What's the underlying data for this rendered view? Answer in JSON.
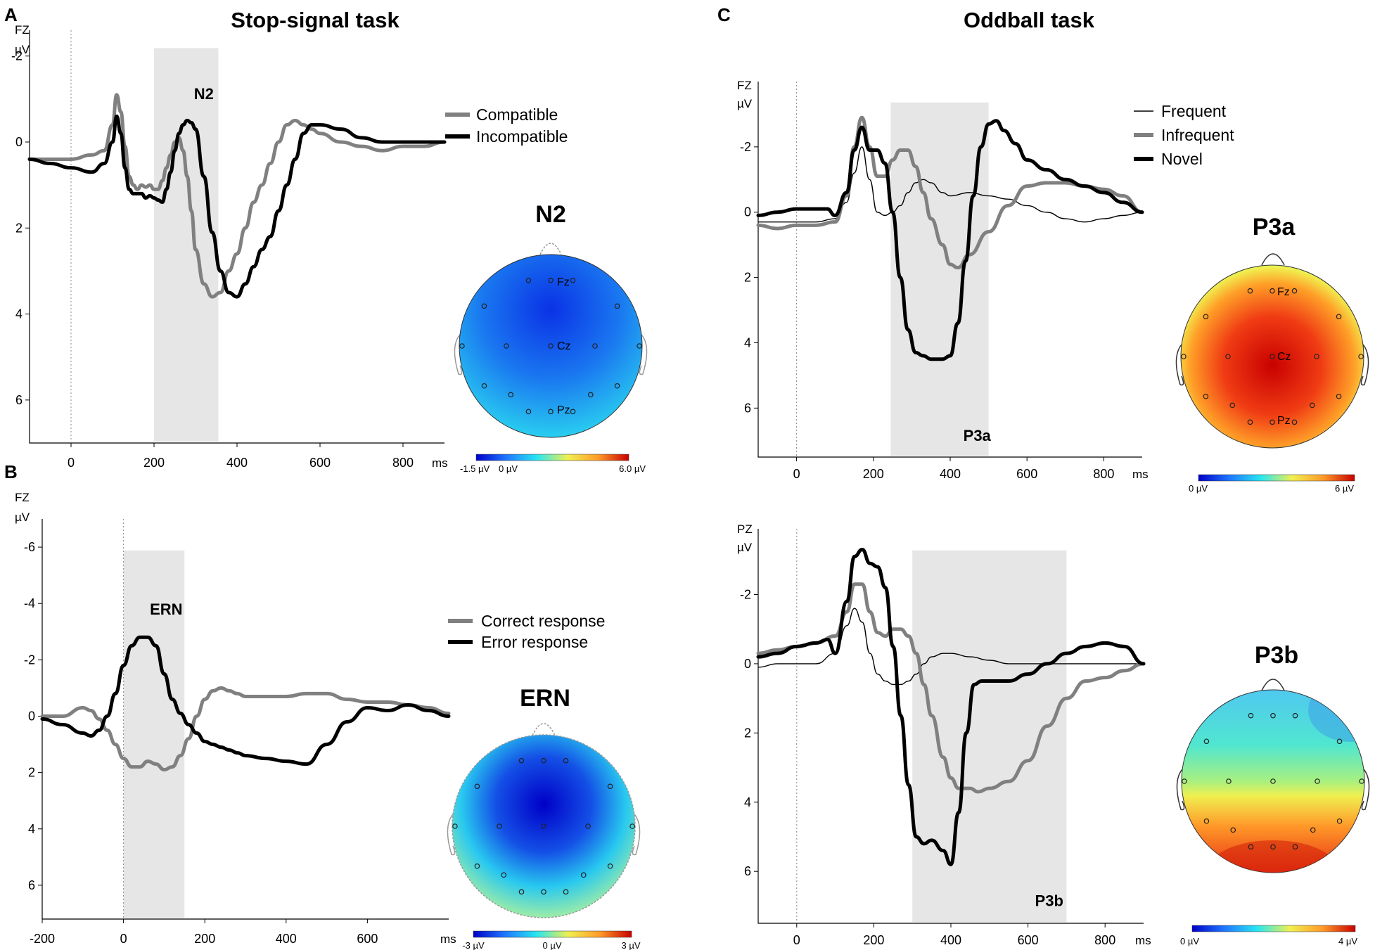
{
  "figure": {
    "panel_A": "A",
    "panel_B": "B",
    "panel_C": "C",
    "stop_title": "Stop-signal task",
    "oddball_title": "Oddball task"
  },
  "colors": {
    "grey_line": "#808080",
    "black_line": "#000000",
    "shade": "#e6e6e6"
  },
  "chart_data": [
    {
      "id": "A",
      "type": "line",
      "channel": "FZ",
      "unit": "µV",
      "xunit": "ms",
      "xlim": [
        -100,
        900
      ],
      "ylim": [
        7,
        -2.6
      ],
      "inverted_y": true,
      "xticks": [
        0,
        200,
        400,
        600,
        800
      ],
      "yticks": [
        -2,
        0,
        2,
        4,
        6
      ],
      "shade": [
        200,
        355
      ],
      "component_label": "N2",
      "component_pos": [
        320,
        -1.0
      ],
      "legend": [
        "Compatible",
        "Incompatible"
      ],
      "series": [
        {
          "name": "Compatible",
          "style": "grey",
          "x": [
            -100,
            -50,
            0,
            50,
            80,
            100,
            110,
            120,
            130,
            140,
            150,
            160,
            170,
            180,
            190,
            200,
            210,
            220,
            230,
            240,
            250,
            260,
            270,
            280,
            290,
            300,
            320,
            340,
            360,
            380,
            400,
            420,
            440,
            460,
            480,
            500,
            520,
            540,
            560,
            580,
            600,
            650,
            700,
            750,
            800,
            850,
            900
          ],
          "y": [
            0.4,
            0.4,
            0.4,
            0.3,
            0.2,
            -0.4,
            -1.1,
            -0.7,
            0.1,
            0.8,
            1.0,
            1.1,
            1.0,
            1.05,
            1.0,
            1.1,
            1.1,
            0.9,
            0.6,
            0.3,
            0.0,
            -0.1,
            0.2,
            0.8,
            1.6,
            2.5,
            3.3,
            3.6,
            3.5,
            3.0,
            2.6,
            2.0,
            1.4,
            1.0,
            0.5,
            0.0,
            -0.4,
            -0.5,
            -0.4,
            -0.3,
            -0.2,
            0.0,
            0.1,
            0.2,
            0.1,
            0.1,
            0.0
          ]
        },
        {
          "name": "Incompatible",
          "style": "black",
          "x": [
            -100,
            -50,
            0,
            50,
            80,
            100,
            110,
            120,
            130,
            140,
            150,
            160,
            170,
            180,
            190,
            200,
            210,
            220,
            230,
            240,
            250,
            260,
            270,
            280,
            290,
            300,
            320,
            340,
            360,
            380,
            400,
            420,
            440,
            460,
            480,
            500,
            520,
            540,
            560,
            580,
            600,
            650,
            700,
            750,
            800,
            850,
            900
          ],
          "y": [
            0.4,
            0.5,
            0.6,
            0.7,
            0.5,
            0.0,
            -0.6,
            -0.2,
            0.6,
            1.1,
            1.2,
            1.2,
            1.2,
            1.3,
            1.25,
            1.3,
            1.35,
            1.4,
            1.1,
            0.7,
            0.2,
            -0.2,
            -0.4,
            -0.5,
            -0.45,
            -0.3,
            0.8,
            2.1,
            3.0,
            3.5,
            3.6,
            3.3,
            2.9,
            2.5,
            2.2,
            1.6,
            1.0,
            0.4,
            -0.2,
            -0.4,
            -0.4,
            -0.3,
            -0.1,
            0.0,
            0.0,
            0.0,
            0.0
          ]
        }
      ]
    },
    {
      "id": "B",
      "type": "line",
      "channel": "FZ",
      "unit": "µV",
      "xunit": "ms",
      "xlim": [
        -200,
        800
      ],
      "ylim": [
        7.2,
        -7
      ],
      "inverted_y": true,
      "xticks": [
        -200,
        0,
        200,
        400,
        600
      ],
      "yticks": [
        -6,
        -4,
        -2,
        0,
        2,
        4,
        6
      ],
      "shade": [
        0,
        150
      ],
      "component_label": "ERN",
      "component_pos": [
        105,
        -3.6
      ],
      "legend": [
        "Correct response",
        "Error response"
      ],
      "series": [
        {
          "name": "Correct response",
          "style": "grey",
          "x": [
            -200,
            -150,
            -100,
            -80,
            -60,
            -40,
            -20,
            0,
            20,
            40,
            60,
            80,
            100,
            120,
            140,
            160,
            180,
            200,
            220,
            240,
            260,
            280,
            300,
            350,
            400,
            450,
            500,
            550,
            600,
            650,
            700,
            750,
            800
          ],
          "y": [
            0.0,
            0.0,
            -0.3,
            -0.2,
            0.1,
            0.5,
            1.0,
            1.5,
            1.8,
            1.8,
            1.6,
            1.7,
            1.9,
            1.8,
            1.4,
            0.8,
            0.0,
            -0.6,
            -0.9,
            -1.0,
            -0.9,
            -0.8,
            -0.7,
            -0.7,
            -0.7,
            -0.8,
            -0.8,
            -0.6,
            -0.5,
            -0.5,
            -0.4,
            -0.3,
            -0.1
          ]
        },
        {
          "name": "Error response",
          "style": "black",
          "x": [
            -200,
            -150,
            -100,
            -80,
            -60,
            -40,
            -20,
            0,
            20,
            40,
            60,
            80,
            100,
            120,
            140,
            160,
            180,
            200,
            220,
            240,
            260,
            280,
            300,
            350,
            400,
            450,
            500,
            550,
            600,
            650,
            700,
            750,
            800
          ],
          "y": [
            0.1,
            0.3,
            0.6,
            0.7,
            0.5,
            0.0,
            -0.8,
            -1.8,
            -2.5,
            -2.8,
            -2.8,
            -2.5,
            -1.5,
            -0.6,
            -0.1,
            0.3,
            0.6,
            0.9,
            1.0,
            1.1,
            1.2,
            1.3,
            1.4,
            1.5,
            1.6,
            1.7,
            1.0,
            0.2,
            -0.3,
            -0.2,
            -0.4,
            -0.2,
            0.0
          ]
        }
      ]
    },
    {
      "id": "C1",
      "type": "line",
      "channel": "FZ",
      "unit": "µV",
      "xunit": "ms",
      "xlim": [
        -100,
        900
      ],
      "ylim": [
        7.5,
        -4
      ],
      "inverted_y": true,
      "xticks": [
        0,
        200,
        400,
        600,
        800
      ],
      "yticks": [
        -2,
        0,
        2,
        4,
        6
      ],
      "shade": [
        245,
        500
      ],
      "component_label": "P3a",
      "component_pos": [
        470,
        7.0
      ],
      "legend": [
        "Frequent",
        "Infrequent",
        "Novel"
      ],
      "series": [
        {
          "name": "Frequent",
          "style": "thin",
          "x": [
            -100,
            -50,
            0,
            50,
            100,
            130,
            150,
            170,
            190,
            210,
            230,
            250,
            270,
            290,
            310,
            330,
            350,
            380,
            400,
            450,
            500,
            550,
            600,
            650,
            700,
            750,
            800,
            850,
            900
          ],
          "y": [
            0.3,
            0.3,
            0.3,
            0.3,
            0.2,
            -0.3,
            -1.2,
            -2.0,
            -1.0,
            0.0,
            0.1,
            0.0,
            -0.2,
            -0.6,
            -0.9,
            -1.0,
            -0.9,
            -0.6,
            -0.5,
            -0.6,
            -0.5,
            -0.4,
            -0.2,
            0.0,
            0.2,
            0.3,
            0.2,
            0.1,
            0.0
          ]
        },
        {
          "name": "Infrequent",
          "style": "grey",
          "x": [
            -100,
            -50,
            0,
            50,
            100,
            130,
            150,
            170,
            190,
            210,
            230,
            250,
            270,
            290,
            310,
            330,
            350,
            380,
            400,
            420,
            450,
            500,
            550,
            600,
            650,
            700,
            750,
            800,
            850,
            900
          ],
          "y": [
            0.4,
            0.5,
            0.4,
            0.4,
            0.3,
            -0.5,
            -2.0,
            -2.9,
            -2.0,
            -1.1,
            -1.1,
            -1.6,
            -1.9,
            -1.9,
            -1.4,
            -0.6,
            0.2,
            1.0,
            1.6,
            1.7,
            1.3,
            0.6,
            -0.2,
            -0.8,
            -0.9,
            -0.9,
            -0.8,
            -0.7,
            -0.5,
            0.0
          ]
        },
        {
          "name": "Novel",
          "style": "black",
          "x": [
            -100,
            -50,
            0,
            50,
            80,
            100,
            130,
            150,
            170,
            190,
            210,
            230,
            250,
            270,
            290,
            310,
            330,
            350,
            380,
            400,
            420,
            440,
            460,
            480,
            500,
            520,
            540,
            570,
            600,
            650,
            700,
            750,
            800,
            850,
            900
          ],
          "y": [
            0.1,
            0.0,
            -0.1,
            -0.1,
            -0.1,
            0.1,
            -0.6,
            -1.9,
            -2.6,
            -1.9,
            -1.9,
            -1.5,
            0.0,
            2.0,
            3.6,
            4.3,
            4.4,
            4.5,
            4.5,
            4.4,
            3.4,
            1.5,
            -0.5,
            -2.0,
            -2.7,
            -2.8,
            -2.5,
            -2.1,
            -1.6,
            -1.3,
            -1.0,
            -0.8,
            -0.6,
            -0.3,
            0.0
          ]
        }
      ]
    },
    {
      "id": "C2",
      "type": "line",
      "channel": "PZ",
      "unit": "µV",
      "xunit": "ms",
      "xlim": [
        -100,
        900
      ],
      "ylim": [
        7.5,
        -3.9
      ],
      "inverted_y": true,
      "xticks": [
        0,
        200,
        400,
        600,
        800
      ],
      "yticks": [
        -2,
        0,
        2,
        4,
        6
      ],
      "shade": [
        300,
        700
      ],
      "component_label": "P3b",
      "component_pos": [
        655,
        7.0
      ],
      "legend": [],
      "series": [
        {
          "name": "Frequent",
          "style": "thin",
          "x": [
            -100,
            -50,
            0,
            50,
            100,
            130,
            150,
            170,
            190,
            210,
            230,
            250,
            270,
            290,
            310,
            330,
            350,
            380,
            400,
            450,
            500,
            550,
            600,
            650,
            700,
            750,
            800,
            850,
            900
          ],
          "y": [
            0.1,
            0.0,
            0.0,
            0.0,
            -0.3,
            -1.1,
            -1.6,
            -1.2,
            -0.3,
            0.3,
            0.5,
            0.6,
            0.6,
            0.5,
            0.3,
            0.0,
            -0.2,
            -0.3,
            -0.3,
            -0.2,
            -0.1,
            0.0,
            0.0,
            0.0,
            0.0,
            0.0,
            0.0,
            0.0,
            0.0
          ]
        },
        {
          "name": "Infrequent",
          "style": "grey",
          "x": [
            -100,
            -50,
            0,
            50,
            100,
            130,
            150,
            170,
            190,
            210,
            230,
            250,
            270,
            290,
            310,
            330,
            350,
            380,
            400,
            420,
            450,
            470,
            500,
            550,
            600,
            650,
            700,
            750,
            800,
            850,
            900
          ],
          "y": [
            -0.3,
            -0.4,
            -0.5,
            -0.6,
            -0.8,
            -1.5,
            -2.3,
            -2.3,
            -1.5,
            -0.9,
            -0.8,
            -1.0,
            -1.0,
            -0.8,
            -0.3,
            0.6,
            1.5,
            2.7,
            3.3,
            3.6,
            3.6,
            3.7,
            3.6,
            3.4,
            2.8,
            1.8,
            1.0,
            0.5,
            0.4,
            0.2,
            0.0
          ]
        },
        {
          "name": "Novel",
          "style": "black",
          "x": [
            -100,
            -50,
            0,
            50,
            80,
            100,
            130,
            150,
            170,
            190,
            210,
            230,
            250,
            270,
            290,
            310,
            330,
            350,
            380,
            400,
            420,
            440,
            460,
            480,
            500,
            550,
            600,
            650,
            700,
            750,
            800,
            850,
            900
          ],
          "y": [
            -0.2,
            -0.3,
            -0.5,
            -0.6,
            -0.7,
            -0.3,
            -1.8,
            -3.1,
            -3.3,
            -2.9,
            -2.8,
            -2.2,
            -0.5,
            1.5,
            3.5,
            5.0,
            5.2,
            5.1,
            5.4,
            5.8,
            4.3,
            2.0,
            0.6,
            0.5,
            0.5,
            0.5,
            0.3,
            0.0,
            -0.3,
            -0.5,
            -0.6,
            -0.5,
            0.0
          ]
        }
      ]
    }
  ],
  "topomaps": [
    {
      "id": "N2",
      "title": "N2",
      "electrode_labels": [
        "Fz",
        "Cz",
        "Pz"
      ],
      "cbar_min": "-1.5 µV",
      "cbar_mid": "0 µV",
      "cbar_max": "6.0 µV"
    },
    {
      "id": "ERN",
      "title": "ERN",
      "cbar_min": "-3 µV",
      "cbar_mid": "0 µV",
      "cbar_max": "3 µV"
    },
    {
      "id": "P3a",
      "title": "P3a",
      "electrode_labels": [
        "Fz",
        "Cz",
        "Pz"
      ],
      "cbar_min": "0 µV",
      "cbar_max": "6 µV"
    },
    {
      "id": "P3b",
      "title": "P3b",
      "cbar_min": "0 µV",
      "cbar_max": "4 µV"
    }
  ]
}
